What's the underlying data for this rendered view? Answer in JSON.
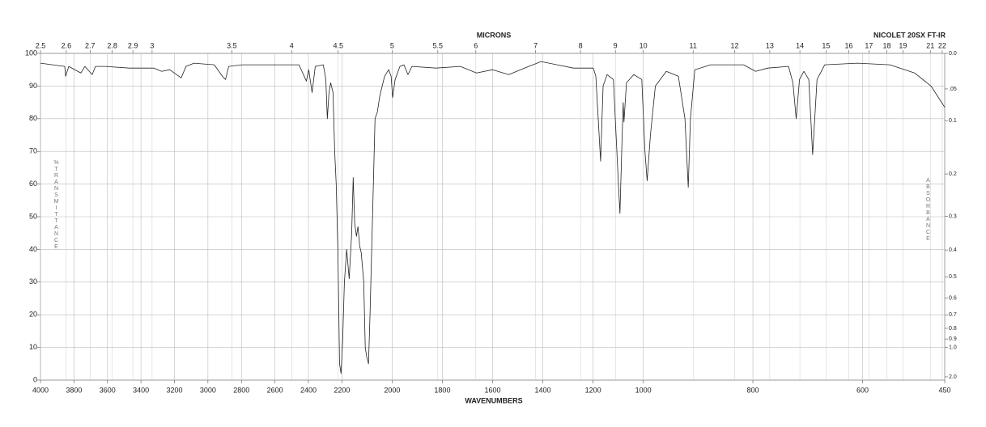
{
  "chart_data": {
    "type": "line",
    "title": "MICRONS",
    "subtitle": "NICOLET 20SX FT-IR",
    "x_label": "WAVENUMBERS",
    "y_label": "%TRANSMITTANCE",
    "y2_label": "ABSORBANCE",
    "color": "#222222",
    "grid": true,
    "xlim": [
      4000,
      450
    ],
    "x_scale_breaks": [
      2200,
      1000
    ],
    "xticks": [
      4000,
      3800,
      3600,
      3400,
      3200,
      3000,
      2800,
      2600,
      2400,
      2200,
      2000,
      1800,
      1600,
      1400,
      1200,
      1000,
      800,
      600,
      450
    ],
    "x2_scale": "reciprocal",
    "x2ticks": [
      2.5,
      2.6,
      2.7,
      2.8,
      2.9,
      3,
      3.5,
      4,
      4.5,
      5,
      5.5,
      6,
      7,
      8,
      9,
      10,
      11,
      12,
      13,
      14,
      15,
      16,
      17,
      18,
      19,
      21,
      22
    ],
    "ylim": [
      0,
      100
    ],
    "yticks": [
      0,
      10,
      20,
      30,
      40,
      50,
      60,
      70,
      80,
      90,
      100
    ],
    "y2_scale": "-log10",
    "y2ticks": [
      {
        "value": 0,
        "label": "0.0"
      },
      {
        "value": 0.05,
        "label": ".05"
      },
      0.1,
      0.2,
      0.3,
      0.4,
      0.5,
      0.6,
      0.7,
      0.8,
      0.9,
      {
        "value": 1,
        "label": "1.0"
      },
      {
        "value": 2,
        "label": "2.0"
      }
    ],
    "x": [
      4000,
      3855,
      3850,
      3831,
      3759,
      3735,
      3691,
      3672,
      3614,
      3469,
      3324,
      3276,
      3228,
      3160,
      3131,
      3083,
      2962,
      2914,
      2895,
      2876,
      2794,
      2600,
      2456,
      2412,
      2398,
      2378,
      2359,
      2311,
      2296,
      2287,
      2277,
      2267,
      2253,
      2243,
      2234,
      2224,
      2214,
      2205,
      2197,
      2190,
      2181,
      2171,
      2161,
      2155,
      2149,
      2142,
      2136,
      2129,
      2123,
      2113,
      2107,
      2101,
      2094,
      2088,
      2078,
      2068,
      2059,
      2049,
      2030,
      2014,
      2004,
      1998,
      1988,
      1969,
      1953,
      1937,
      1921,
      1825,
      1728,
      1664,
      1600,
      1536,
      1472,
      1407,
      1343,
      1279,
      1199,
      1189,
      1170,
      1160,
      1144,
      1119,
      1099,
      1093,
      1086,
      1080,
      1077,
      1067,
      1038,
      1006,
      997,
      993,
      987,
      978,
      958,
      936,
      924,
      918,
      914,
      906,
      877,
      817,
      795,
      773,
      735,
      727,
      721,
      715,
      707,
      698,
      691,
      683,
      669,
      609,
      550,
      505,
      475,
      450
    ],
    "values": [
      97,
      96,
      93,
      96,
      94,
      96,
      93.5,
      96,
      96,
      95.5,
      95.5,
      94.5,
      95,
      92.5,
      96,
      97,
      96.5,
      93,
      92,
      96,
      96.5,
      96.5,
      96.5,
      91.5,
      95,
      88,
      96,
      96.5,
      92,
      80,
      88,
      91,
      88,
      70,
      60,
      40,
      5,
      2,
      12,
      30,
      40,
      31,
      45,
      62,
      48,
      44,
      47,
      41,
      39,
      30,
      10,
      7,
      5,
      20,
      50,
      80,
      82,
      87,
      93,
      95,
      93,
      86.5,
      92,
      96,
      96.5,
      93.5,
      96,
      95.5,
      96,
      94,
      95,
      93.5,
      95.5,
      97.5,
      96.5,
      95.5,
      95.5,
      93,
      67,
      90,
      93.5,
      92,
      60,
      51,
      70,
      85,
      79,
      91,
      93.5,
      92,
      70,
      61,
      75,
      90,
      94.5,
      93,
      80,
      59,
      80,
      95,
      96.5,
      96.5,
      94.5,
      95.5,
      96,
      91,
      80,
      92,
      94.5,
      92,
      69,
      92,
      96.5,
      97,
      96.5,
      94,
      90,
      83.5
    ]
  }
}
